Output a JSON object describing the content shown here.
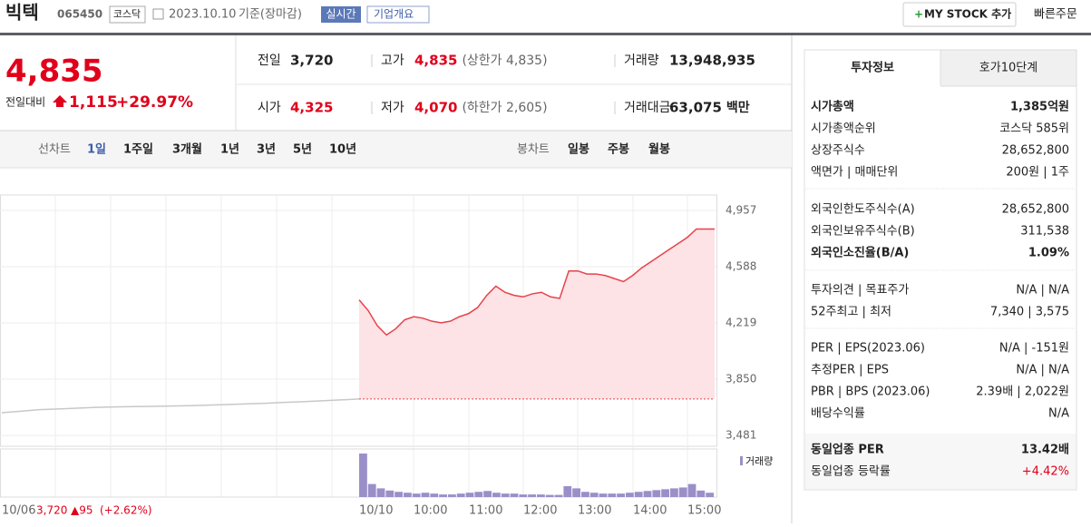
{
  "header": {
    "name": "빅텍",
    "code": "065450",
    "market": "코스닥",
    "date": "2023.10.10",
    "basis": "기준(장마감)",
    "realtime": "실시간",
    "overview": "기업개요",
    "mystock": "MY STOCK 추가",
    "quick_order": "빠른주문"
  },
  "quote": {
    "price": "4,835",
    "change_label": "전일대비",
    "change": "1,115",
    "change_pct": "+29.97%",
    "fields": [
      {
        "label": "전일",
        "value": "3,720"
      },
      {
        "label": "고가",
        "value": "4,835",
        "note": "(상한가 4,835)"
      },
      {
        "label": "거래량",
        "value": "13,948,935"
      },
      {
        "label": "시가",
        "value": "4,325"
      },
      {
        "label": "저가",
        "value": "4,070",
        "note": "(하한가 2,605)"
      },
      {
        "label": "거래대금",
        "value": "63,075",
        "unit": "백만"
      }
    ]
  },
  "line_tabs": {
    "label": "선차트",
    "items": [
      "1일",
      "1주일",
      "3개월",
      "1년",
      "3년",
      "5년",
      "10년"
    ]
  },
  "candle_tabs": {
    "label": "봉차트",
    "items": [
      "일봉",
      "주봉",
      "월봉"
    ]
  },
  "chart_data": {
    "type": "line",
    "ylim": [
      3410,
      5058
    ],
    "yticks": [
      {
        "value": 4957,
        "label": "4,957"
      },
      {
        "value": 4588,
        "label": "4,588"
      },
      {
        "value": 4219,
        "label": "4,219"
      },
      {
        "value": 3850,
        "label": "3,850"
      },
      {
        "value": 3481,
        "label": "3,481"
      }
    ],
    "xlabels": [
      "10/06",
      "10/10",
      "10:00",
      "11:00",
      "12:00",
      "13:00",
      "14:00",
      "15:00"
    ],
    "reference": 3720,
    "series": [
      {
        "color": "#c8c8c8",
        "values": [
          3630,
          3640,
          3650,
          3655,
          3660,
          3665,
          3668,
          3670,
          3672,
          3674,
          3676,
          3680,
          3684,
          3688,
          3692,
          3698,
          3702,
          3708,
          3714,
          3720
        ]
      },
      {
        "color": "#e8414a",
        "fill": "#fde3e5",
        "values": [
          4370,
          4300,
          4200,
          4140,
          4180,
          4240,
          4260,
          4250,
          4230,
          4220,
          4230,
          4260,
          4280,
          4320,
          4400,
          4460,
          4420,
          4400,
          4390,
          4410,
          4420,
          4390,
          4380,
          4560,
          4560,
          4540,
          4540,
          4530,
          4510,
          4490,
          4530,
          4580,
          4620,
          4660,
          4700,
          4740,
          4780,
          4835,
          4835,
          4835
        ]
      }
    ],
    "volume": {
      "name": "거래량",
      "color": "#9b8fc9",
      "values": [
        100,
        30,
        20,
        15,
        12,
        10,
        8,
        10,
        8,
        6,
        6,
        8,
        10,
        12,
        14,
        10,
        8,
        8,
        6,
        6,
        6,
        5,
        5,
        25,
        20,
        12,
        10,
        8,
        8,
        8,
        10,
        12,
        14,
        16,
        18,
        20,
        22,
        30,
        15,
        10
      ]
    },
    "footer": {
      "date": "10/06",
      "price": "3,720",
      "change": "▲95",
      "change_pct": "(+2.62%)"
    }
  },
  "panel": {
    "tabs": [
      "투자정보",
      "호가10단계"
    ],
    "groups": [
      [
        [
          "시가총액",
          "1,385억원"
        ],
        [
          "시가총액순위",
          "코스닥 585위"
        ],
        [
          "상장주식수",
          "28,652,800"
        ],
        [
          "액면가 | 매매단위",
          "200원 | 1주"
        ]
      ],
      [
        [
          "외국인한도주식수(A)",
          "28,652,800"
        ],
        [
          "외국인보유주식수(B)",
          "311,538"
        ],
        [
          "외국인소진율(B/A)",
          "1.09%"
        ]
      ],
      [
        [
          "투자의견 | 목표주가",
          "N/A | N/A"
        ],
        [
          "52주최고 | 최저",
          "7,340 | 3,575"
        ]
      ],
      [
        [
          "PER | EPS(2023.06)",
          "N/A | -151원"
        ],
        [
          "추정PER | EPS",
          "N/A | N/A"
        ],
        [
          "PBR | BPS (2023.06)",
          "2.39배 | 2,022원"
        ],
        [
          "배당수익률",
          "N/A"
        ]
      ],
      [
        [
          "동일업종 PER",
          "13.42배"
        ],
        [
          "동일업종 등락률",
          "+4.42%"
        ]
      ]
    ]
  }
}
